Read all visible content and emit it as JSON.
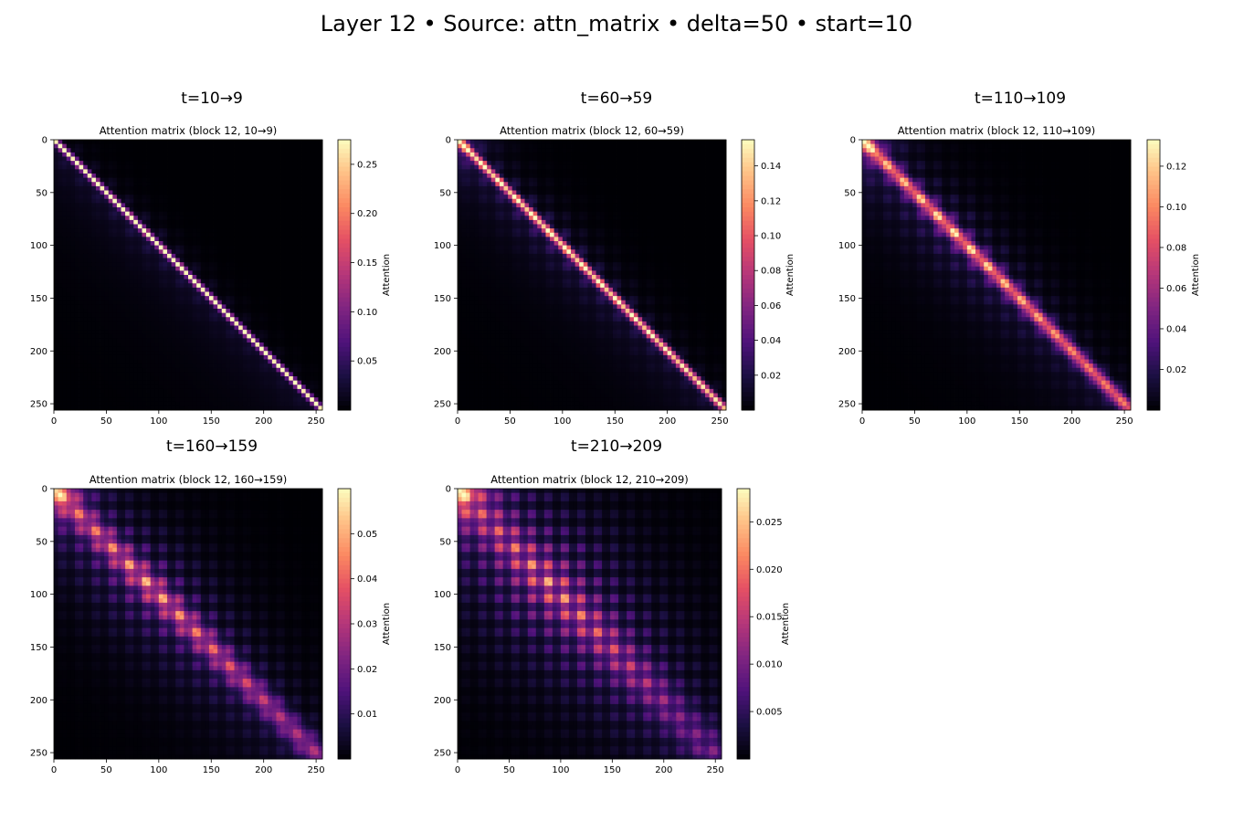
{
  "figure": {
    "title": "Layer 12 • Source: attn_matrix • delta=50 • start=10"
  },
  "chart_data": [
    {
      "type": "heatmap",
      "suptitle": "t=10→9",
      "title": "Attention matrix (block 12, 10→9)",
      "xlim": [
        0,
        255
      ],
      "ylim": [
        255,
        0
      ],
      "x_ticks": [
        0,
        50,
        100,
        150,
        200,
        250
      ],
      "y_ticks": [
        0,
        50,
        100,
        150,
        200,
        250
      ],
      "colormap": "magma",
      "colorbar": {
        "label": "Attention",
        "range": [
          0,
          0.275
        ],
        "ticks": [
          0.05,
          0.1,
          0.15,
          0.2,
          0.25
        ],
        "tick_labels": [
          "0.05",
          "0.10",
          "0.15",
          "0.20",
          "0.25"
        ]
      },
      "pattern": {
        "diag": 0.95,
        "block": 0.25,
        "spread": 2.5,
        "decay": 14,
        "corner": 0.0
      }
    },
    {
      "type": "heatmap",
      "suptitle": "t=60→59",
      "title": "Attention matrix (block 12, 60→59)",
      "xlim": [
        0,
        255
      ],
      "ylim": [
        255,
        0
      ],
      "x_ticks": [
        0,
        50,
        100,
        150,
        200,
        250
      ],
      "y_ticks": [
        0,
        50,
        100,
        150,
        200,
        250
      ],
      "colormap": "magma",
      "colorbar": {
        "label": "Attention",
        "range": [
          0,
          0.155
        ],
        "ticks": [
          0.02,
          0.04,
          0.06,
          0.08,
          0.1,
          0.12,
          0.14
        ],
        "tick_labels": [
          "0.02",
          "0.04",
          "0.06",
          "0.08",
          "0.10",
          "0.12",
          "0.14"
        ]
      },
      "pattern": {
        "diag": 0.85,
        "block": 0.35,
        "spread": 3.5,
        "decay": 20,
        "corner": 0.3
      }
    },
    {
      "type": "heatmap",
      "suptitle": "t=110→109",
      "title": "Attention matrix (block 12, 110→109)",
      "xlim": [
        0,
        255
      ],
      "ylim": [
        255,
        0
      ],
      "x_ticks": [
        0,
        50,
        100,
        150,
        200,
        250
      ],
      "y_ticks": [
        0,
        50,
        100,
        150,
        200,
        250
      ],
      "colormap": "magma",
      "colorbar": {
        "label": "Attention",
        "range": [
          0,
          0.133
        ],
        "ticks": [
          0.02,
          0.04,
          0.06,
          0.08,
          0.1,
          0.12
        ],
        "tick_labels": [
          "0.02",
          "0.04",
          "0.06",
          "0.08",
          "0.10",
          "0.12"
        ]
      },
      "pattern": {
        "diag": 0.6,
        "block": 0.45,
        "spread": 6,
        "decay": 28,
        "corner": 0.45
      }
    },
    {
      "type": "heatmap",
      "suptitle": "t=160→159",
      "title": "Attention matrix (block 12, 160→159)",
      "xlim": [
        0,
        255
      ],
      "ylim": [
        255,
        0
      ],
      "x_ticks": [
        0,
        50,
        100,
        150,
        200,
        250
      ],
      "y_ticks": [
        0,
        50,
        100,
        150,
        200,
        250
      ],
      "colormap": "magma",
      "colorbar": {
        "label": "Attention",
        "range": [
          0,
          0.06
        ],
        "ticks": [
          0.01,
          0.02,
          0.03,
          0.04,
          0.05
        ],
        "tick_labels": [
          "0.01",
          "0.02",
          "0.03",
          "0.04",
          "0.05"
        ]
      },
      "pattern": {
        "diag": 0.3,
        "block": 0.7,
        "spread": 10,
        "decay": 40,
        "corner": 0.7
      }
    },
    {
      "type": "heatmap",
      "suptitle": "t=210→209",
      "title": "Attention matrix (block 12, 210→209)",
      "xlim": [
        0,
        255
      ],
      "ylim": [
        255,
        0
      ],
      "x_ticks": [
        0,
        50,
        100,
        150,
        200,
        250
      ],
      "y_ticks": [
        0,
        50,
        100,
        150,
        200,
        250
      ],
      "colormap": "magma",
      "colorbar": {
        "label": "Attention",
        "range": [
          0,
          0.0285
        ],
        "ticks": [
          0.005,
          0.01,
          0.015,
          0.02,
          0.025
        ],
        "tick_labels": [
          "0.005",
          "0.010",
          "0.015",
          "0.020",
          "0.025"
        ]
      },
      "pattern": {
        "diag": 0.15,
        "block": 0.85,
        "spread": 16,
        "decay": 60,
        "corner": 0.95
      }
    }
  ]
}
